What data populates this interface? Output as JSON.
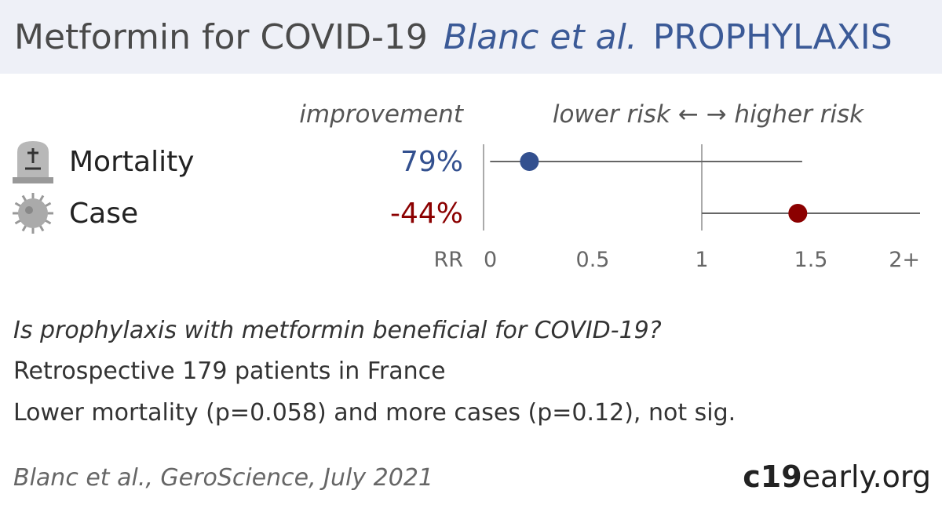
{
  "header": {
    "title": "Metformin for COVID-19",
    "study": "Blanc et al.",
    "type": "PROPHYLAXIS"
  },
  "chart_data": {
    "type": "forest",
    "column_header_left": "improvement",
    "column_header_right": "lower risk ← → higher risk",
    "axis_label": "RR",
    "ticks": [
      "0",
      "0.5",
      "1",
      "1.5",
      "2+"
    ],
    "xlim": [
      0,
      2
    ],
    "reference_line": 1,
    "rows": [
      {
        "icon": "tombstone-icon",
        "label": "Mortality",
        "improvement": "79%",
        "rr": 0.21,
        "ci_low": 0.03,
        "ci_high": 1.46,
        "color": "#33508f"
      },
      {
        "icon": "virus-icon",
        "label": "Case",
        "improvement": "-44%",
        "rr": 1.44,
        "ci_low": 1.0,
        "ci_high": 2.0,
        "color": "#8b0000"
      }
    ]
  },
  "summary": {
    "question": "Is prophylaxis with metformin beneficial for COVID-19?",
    "design": "Retrospective 179 patients in France",
    "result": "Lower mortality (p=0.058) and more cases (p=0.12), not sig."
  },
  "citation": "Blanc et al., GeroScience, July 2021",
  "brand": {
    "bold": "c19",
    "rest": "early.org"
  }
}
